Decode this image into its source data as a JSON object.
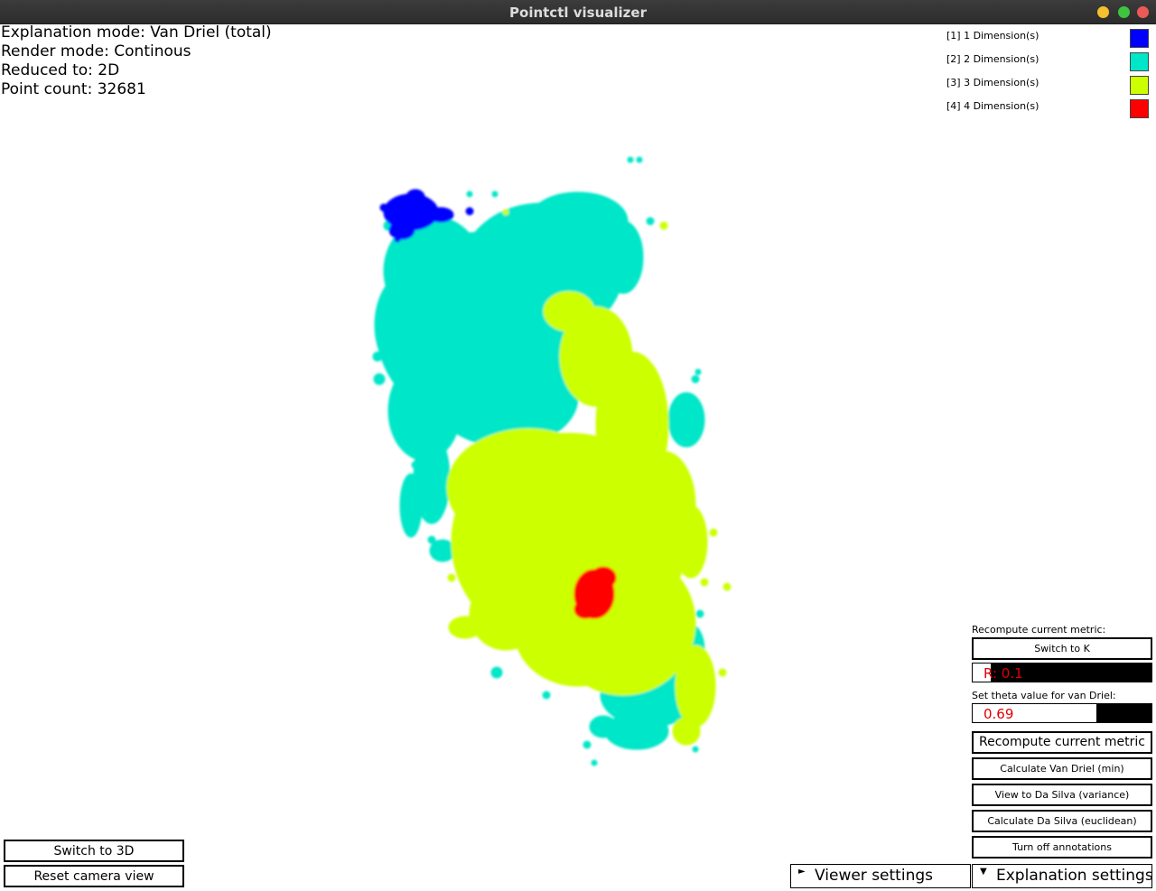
{
  "window": {
    "title": "Pointctl visualizer"
  },
  "info": {
    "explanation_mode": "Explanation mode: Van Driel (total)",
    "render_mode": "Render mode: Continous",
    "reduced_to": "Reduced to: 2D",
    "point_count": "Point count: 32681"
  },
  "legend": [
    {
      "label": "[1] 1 Dimension(s)",
      "color": "#0000ff"
    },
    {
      "label": "[2] 2 Dimension(s)",
      "color": "#00e6c8"
    },
    {
      "label": "[3] 3 Dimension(s)",
      "color": "#ccff00"
    },
    {
      "label": "[4] 4 Dimension(s)",
      "color": "#ff0000"
    }
  ],
  "controls": {
    "recompute_label": "Recompute current metric:",
    "switch_to_k": "Switch to K",
    "r_slider": {
      "text": "R: 0.1",
      "value": 0.1
    },
    "theta_label": "Set theta value for van Driel:",
    "theta_slider": {
      "text": "0.69",
      "value": 0.69
    },
    "recompute_button": "Recompute current metric",
    "calc_van_driel_min": "Calculate Van Driel (min)",
    "view_da_silva_variance": "View to Da Silva (variance)",
    "calc_da_silva_euclidean": "Calculate Da Silva (euclidean)",
    "turn_off_annotations": "Turn off annotations"
  },
  "bottom_left": {
    "switch_to_3d": "Switch to 3D",
    "reset_camera": "Reset camera view"
  },
  "panels": {
    "viewer_settings": "Viewer settings",
    "explanation_settings": "Explanation settings",
    "viewer_settings_icon": "triangle-right-icon",
    "explanation_settings_icon": "triangle-down-icon"
  },
  "colors": {
    "dim1": "#0000ff",
    "dim2": "#00e6c8",
    "dim3": "#ccff00",
    "dim4": "#ff0000",
    "slider_text": "#e00000"
  }
}
